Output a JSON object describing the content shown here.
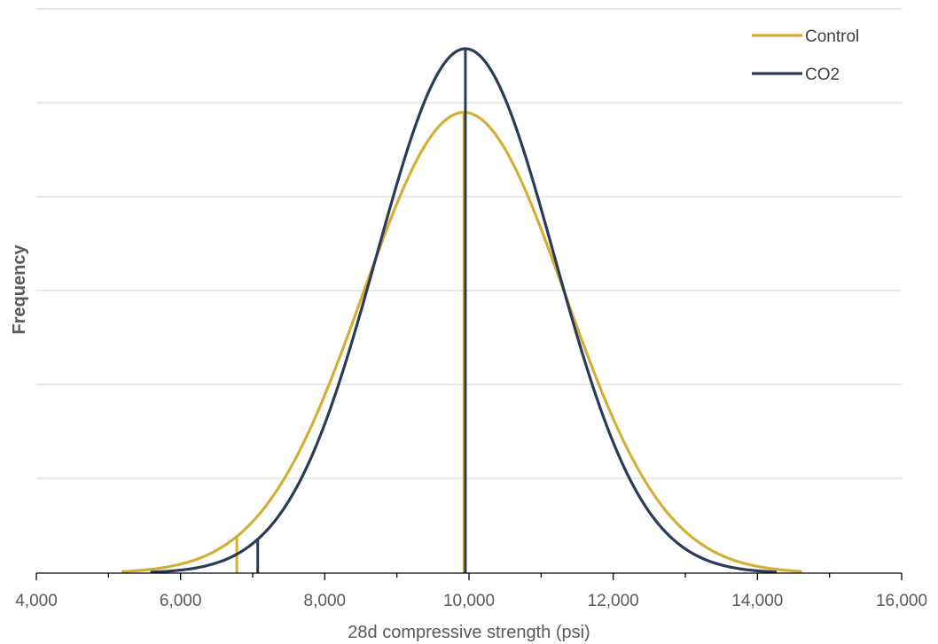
{
  "chart_data": {
    "type": "line",
    "title": "",
    "xlabel": "28d compressive strength (psi)",
    "ylabel": "Frequency",
    "xlim": [
      4000,
      16000
    ],
    "x_ticks": [
      4000,
      6000,
      8000,
      10000,
      12000,
      14000,
      16000
    ],
    "x_tick_labels": [
      "4,000",
      "6,000",
      "8,000",
      "10,000",
      "12,000",
      "14,000",
      "16,000"
    ],
    "y_axis_tick_labels_shown": false,
    "grid": "horizontal",
    "legend_position": "top-right",
    "series": [
      {
        "name": "Control",
        "color": "#D4AF37",
        "distribution": "normal",
        "mean": 9930,
        "std_dev": 1400,
        "x_range": [
          5200,
          14600
        ],
        "markers": [
          {
            "label": "mean",
            "x": 9930
          },
          {
            "label": "lower",
            "x": 6780
          }
        ]
      },
      {
        "name": "CO2",
        "color": "#2B3A57",
        "distribution": "normal",
        "mean": 9950,
        "std_dev": 1230,
        "x_range": [
          5600,
          14250
        ],
        "markers": [
          {
            "label": "mean",
            "x": 9950
          },
          {
            "label": "lower",
            "x": 7070
          }
        ]
      }
    ]
  }
}
